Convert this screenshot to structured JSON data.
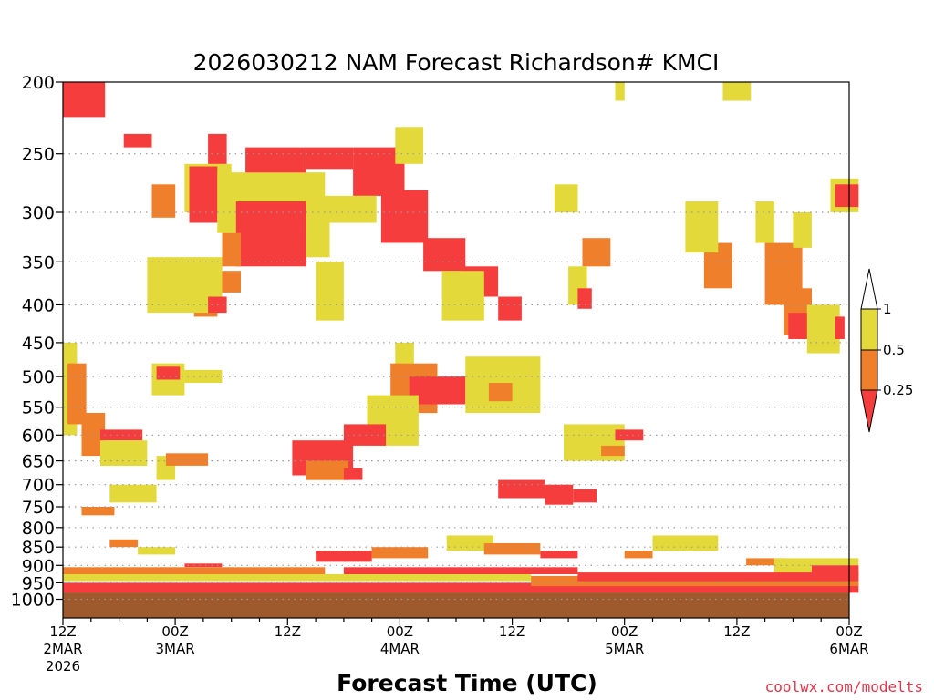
{
  "chart_data": {
    "type": "heatmap",
    "title": "2026030212 NAM Forecast Richardson# KMCI",
    "xlabel": "Forecast Time (UTC)",
    "ylabel": "",
    "credit": "coolwx.com/modelts",
    "x_hours_range": [
      0,
      84
    ],
    "y_pressure_range": [
      1000,
      200
    ],
    "y_ticks": [
      200,
      250,
      300,
      350,
      400,
      450,
      500,
      550,
      600,
      650,
      700,
      750,
      800,
      850,
      900,
      950,
      1000
    ],
    "x_ticks": [
      {
        "hour": 0,
        "line1": "12Z",
        "line2": "2MAR",
        "line3": "2026"
      },
      {
        "hour": 12,
        "line1": "00Z",
        "line2": "3MAR",
        "line3": ""
      },
      {
        "hour": 24,
        "line1": "12Z",
        "line2": "",
        "line3": ""
      },
      {
        "hour": 36,
        "line1": "00Z",
        "line2": "4MAR",
        "line3": ""
      },
      {
        "hour": 48,
        "line1": "12Z",
        "line2": "",
        "line3": ""
      },
      {
        "hour": 60,
        "line1": "00Z",
        "line2": "5MAR",
        "line3": ""
      },
      {
        "hour": 72,
        "line1": "12Z",
        "line2": "",
        "line3": ""
      },
      {
        "hour": 84,
        "line1": "00Z",
        "line2": "6MAR",
        "line3": ""
      }
    ],
    "legend": {
      "placement": "right",
      "labels": [
        "1",
        "0.5",
        "0.25"
      ],
      "bins": [
        {
          "range": "> 1",
          "color": "#ffffff"
        },
        {
          "range": "0.5 - 1",
          "color": "#e3d93a"
        },
        {
          "range": "0.25 - 0.5",
          "color": "#ef7f2a"
        },
        {
          "range": "< 0.25",
          "color": "#f53d3d"
        }
      ]
    },
    "colors": {
      "high": "#e3d93a",
      "mid": "#ef7f2a",
      "low": "#f53d3d",
      "ground": "#9e5a2c"
    },
    "ground_pressure": 980,
    "regions": [
      {
        "level": "low",
        "t": [
          0,
          4.5
        ],
        "p": [
          200,
          223
        ]
      },
      {
        "level": "low",
        "t": [
          6.5,
          9.5
        ],
        "p": [
          235,
          245
        ]
      },
      {
        "level": "low",
        "t": [
          15.5,
          17.5
        ],
        "p": [
          235,
          262
        ]
      },
      {
        "level": "high",
        "t": [
          13,
          18
        ],
        "p": [
          258,
          300
        ]
      },
      {
        "level": "mid",
        "t": [
          9.5,
          12
        ],
        "p": [
          275,
          305
        ]
      },
      {
        "level": "low",
        "t": [
          13.5,
          16.5
        ],
        "p": [
          260,
          310
        ]
      },
      {
        "level": "high",
        "t": [
          16.5,
          28
        ],
        "p": [
          265,
          320
        ]
      },
      {
        "level": "low",
        "t": [
          19.5,
          26
        ],
        "p": [
          245,
          265
        ]
      },
      {
        "level": "low",
        "t": [
          26,
          31
        ],
        "p": [
          245,
          262
        ]
      },
      {
        "level": "low",
        "t": [
          31,
          36.5
        ],
        "p": [
          245,
          285
        ]
      },
      {
        "level": "low",
        "t": [
          18.5,
          26
        ],
        "p": [
          290,
          355
        ]
      },
      {
        "level": "mid",
        "t": [
          17,
          19
        ],
        "p": [
          320,
          355
        ]
      },
      {
        "level": "high",
        "t": [
          26,
          28.5
        ],
        "p": [
          285,
          345
        ]
      },
      {
        "level": "high",
        "t": [
          28,
          33.5
        ],
        "p": [
          285,
          310
        ]
      },
      {
        "level": "low",
        "t": [
          34,
          39
        ],
        "p": [
          280,
          330
        ]
      },
      {
        "level": "low",
        "t": [
          38.5,
          43
        ],
        "p": [
          325,
          360
        ]
      },
      {
        "level": "low",
        "t": [
          42.5,
          46.5
        ],
        "p": [
          355,
          390
        ]
      },
      {
        "level": "high",
        "t": [
          40.5,
          45
        ],
        "p": [
          360,
          420
        ]
      },
      {
        "level": "low",
        "t": [
          46.5,
          49
        ],
        "p": [
          390,
          420
        ]
      },
      {
        "level": "high",
        "t": [
          27,
          30
        ],
        "p": [
          350,
          420
        ]
      },
      {
        "level": "high",
        "t": [
          35.5,
          38.5
        ],
        "p": [
          230,
          258
        ]
      },
      {
        "level": "mid",
        "t": [
          14,
          16.5
        ],
        "p": [
          395,
          415
        ]
      },
      {
        "level": "high",
        "t": [
          9,
          17
        ],
        "p": [
          345,
          410
        ]
      },
      {
        "level": "mid",
        "t": [
          17,
          19
        ],
        "p": [
          360,
          385
        ]
      },
      {
        "level": "low",
        "t": [
          15.5,
          17.5
        ],
        "p": [
          390,
          410
        ]
      },
      {
        "level": "mid",
        "t": [
          55.5,
          58.5
        ],
        "p": [
          325,
          355
        ]
      },
      {
        "level": "high",
        "t": [
          54,
          56
        ],
        "p": [
          355,
          400
        ]
      },
      {
        "level": "low",
        "t": [
          55,
          56.5
        ],
        "p": [
          380,
          405
        ]
      },
      {
        "level": "mid",
        "t": [
          68.5,
          71.5
        ],
        "p": [
          330,
          380
        ]
      },
      {
        "level": "high",
        "t": [
          66.5,
          70
        ],
        "p": [
          290,
          340
        ]
      },
      {
        "level": "high",
        "t": [
          74,
          76
        ],
        "p": [
          290,
          330
        ]
      },
      {
        "level": "mid",
        "t": [
          75,
          79
        ],
        "p": [
          330,
          400
        ]
      },
      {
        "level": "mid",
        "t": [
          77,
          80
        ],
        "p": [
          380,
          440
        ]
      },
      {
        "level": "low",
        "t": [
          77.5,
          80.5
        ],
        "p": [
          410,
          445
        ]
      },
      {
        "level": "high",
        "t": [
          79.5,
          83
        ],
        "p": [
          400,
          465
        ]
      },
      {
        "level": "low",
        "t": [
          82.5,
          83.5
        ],
        "p": [
          415,
          445
        ]
      },
      {
        "level": "high",
        "t": [
          82,
          85
        ],
        "p": [
          270,
          300
        ]
      },
      {
        "level": "low",
        "t": [
          82.5,
          85
        ],
        "p": [
          275,
          295
        ]
      },
      {
        "level": "high",
        "t": [
          78,
          80
        ],
        "p": [
          300,
          335
        ]
      },
      {
        "level": "high",
        "t": [
          52.5,
          55
        ],
        "p": [
          275,
          300
        ]
      },
      {
        "level": "high",
        "t": [
          70.5,
          73.5
        ],
        "p": [
          200,
          212
        ]
      },
      {
        "level": "high",
        "t": [
          59,
          60
        ],
        "p": [
          200,
          212
        ]
      },
      {
        "level": "high",
        "t": [
          35.5,
          37.5
        ],
        "p": [
          450,
          530
        ]
      },
      {
        "level": "mid",
        "t": [
          35,
          40
        ],
        "p": [
          480,
          560
        ]
      },
      {
        "level": "low",
        "t": [
          37,
          43
        ],
        "p": [
          500,
          545
        ]
      },
      {
        "level": "high",
        "t": [
          32.5,
          38
        ],
        "p": [
          530,
          620
        ]
      },
      {
        "level": "low",
        "t": [
          30,
          34.5
        ],
        "p": [
          580,
          620
        ]
      },
      {
        "level": "high",
        "t": [
          0,
          1.5
        ],
        "p": [
          450,
          600
        ]
      },
      {
        "level": "mid",
        "t": [
          0.5,
          2.5
        ],
        "p": [
          480,
          580
        ]
      },
      {
        "level": "mid",
        "t": [
          2,
          4.5
        ],
        "p": [
          560,
          640
        ]
      },
      {
        "level": "low",
        "t": [
          4,
          8.5
        ],
        "p": [
          590,
          610
        ]
      },
      {
        "level": "high",
        "t": [
          4,
          9
        ],
        "p": [
          610,
          660
        ]
      },
      {
        "level": "high",
        "t": [
          9.5,
          13
        ],
        "p": [
          480,
          530
        ]
      },
      {
        "level": "low",
        "t": [
          10,
          12.5
        ],
        "p": [
          485,
          505
        ]
      },
      {
        "level": "high",
        "t": [
          13,
          17
        ],
        "p": [
          490,
          510
        ]
      },
      {
        "level": "high",
        "t": [
          10,
          12
        ],
        "p": [
          640,
          690
        ]
      },
      {
        "level": "mid",
        "t": [
          11,
          15.5
        ],
        "p": [
          635,
          660
        ]
      },
      {
        "level": "low",
        "t": [
          24.5,
          31
        ],
        "p": [
          610,
          680
        ]
      },
      {
        "level": "mid",
        "t": [
          26,
          30.5
        ],
        "p": [
          650,
          690
        ]
      },
      {
        "level": "low",
        "t": [
          30,
          32
        ],
        "p": [
          665,
          690
        ]
      },
      {
        "level": "high",
        "t": [
          43,
          51
        ],
        "p": [
          470,
          560
        ]
      },
      {
        "level": "mid",
        "t": [
          45.5,
          48
        ],
        "p": [
          510,
          540
        ]
      },
      {
        "level": "low",
        "t": [
          46.5,
          51.5
        ],
        "p": [
          690,
          730
        ]
      },
      {
        "level": "low",
        "t": [
          51.5,
          54.5
        ],
        "p": [
          700,
          745
        ]
      },
      {
        "level": "low",
        "t": [
          54.5,
          57
        ],
        "p": [
          710,
          740
        ]
      },
      {
        "level": "high",
        "t": [
          53.5,
          60
        ],
        "p": [
          580,
          650
        ]
      },
      {
        "level": "low",
        "t": [
          59,
          62
        ],
        "p": [
          590,
          610
        ]
      },
      {
        "level": "mid",
        "t": [
          57.5,
          60
        ],
        "p": [
          620,
          640
        ]
      },
      {
        "level": "mid",
        "t": [
          2,
          5.5
        ],
        "p": [
          750,
          770
        ]
      },
      {
        "level": "high",
        "t": [
          5,
          10
        ],
        "p": [
          700,
          740
        ]
      },
      {
        "level": "mid",
        "t": [
          5,
          8
        ],
        "p": [
          830,
          850
        ]
      },
      {
        "level": "high",
        "t": [
          8,
          12
        ],
        "p": [
          850,
          870
        ]
      },
      {
        "level": "low",
        "t": [
          13,
          17
        ],
        "p": [
          895,
          905
        ]
      },
      {
        "level": "low",
        "t": [
          27,
          33
        ],
        "p": [
          860,
          890
        ]
      },
      {
        "level": "mid",
        "t": [
          33,
          39
        ],
        "p": [
          850,
          880
        ]
      },
      {
        "level": "high",
        "t": [
          41,
          46
        ],
        "p": [
          820,
          860
        ]
      },
      {
        "level": "mid",
        "t": [
          45,
          51
        ],
        "p": [
          840,
          870
        ]
      },
      {
        "level": "low",
        "t": [
          51,
          55
        ],
        "p": [
          860,
          880
        ]
      },
      {
        "level": "mid",
        "t": [
          60,
          63
        ],
        "p": [
          860,
          880
        ]
      },
      {
        "level": "high",
        "t": [
          63,
          70
        ],
        "p": [
          820,
          860
        ]
      },
      {
        "level": "mid",
        "t": [
          73,
          77
        ],
        "p": [
          880,
          900
        ]
      },
      {
        "level": "high",
        "t": [
          76,
          85
        ],
        "p": [
          880,
          930
        ]
      },
      {
        "level": "low",
        "t": [
          80,
          85
        ],
        "p": [
          900,
          930
        ]
      },
      {
        "level": "low",
        "t": [
          0,
          85
        ],
        "p": [
          950,
          980
        ]
      },
      {
        "level": "mid",
        "t": [
          50,
          85
        ],
        "p": [
          930,
          960
        ]
      },
      {
        "level": "low",
        "t": [
          55,
          85
        ],
        "p": [
          920,
          945
        ]
      },
      {
        "level": "high",
        "t": [
          0,
          50
        ],
        "p": [
          925,
          945
        ]
      },
      {
        "level": "mid",
        "t": [
          0,
          28
        ],
        "p": [
          905,
          925
        ]
      },
      {
        "level": "low",
        "t": [
          30,
          55
        ],
        "p": [
          905,
          925
        ]
      }
    ]
  }
}
